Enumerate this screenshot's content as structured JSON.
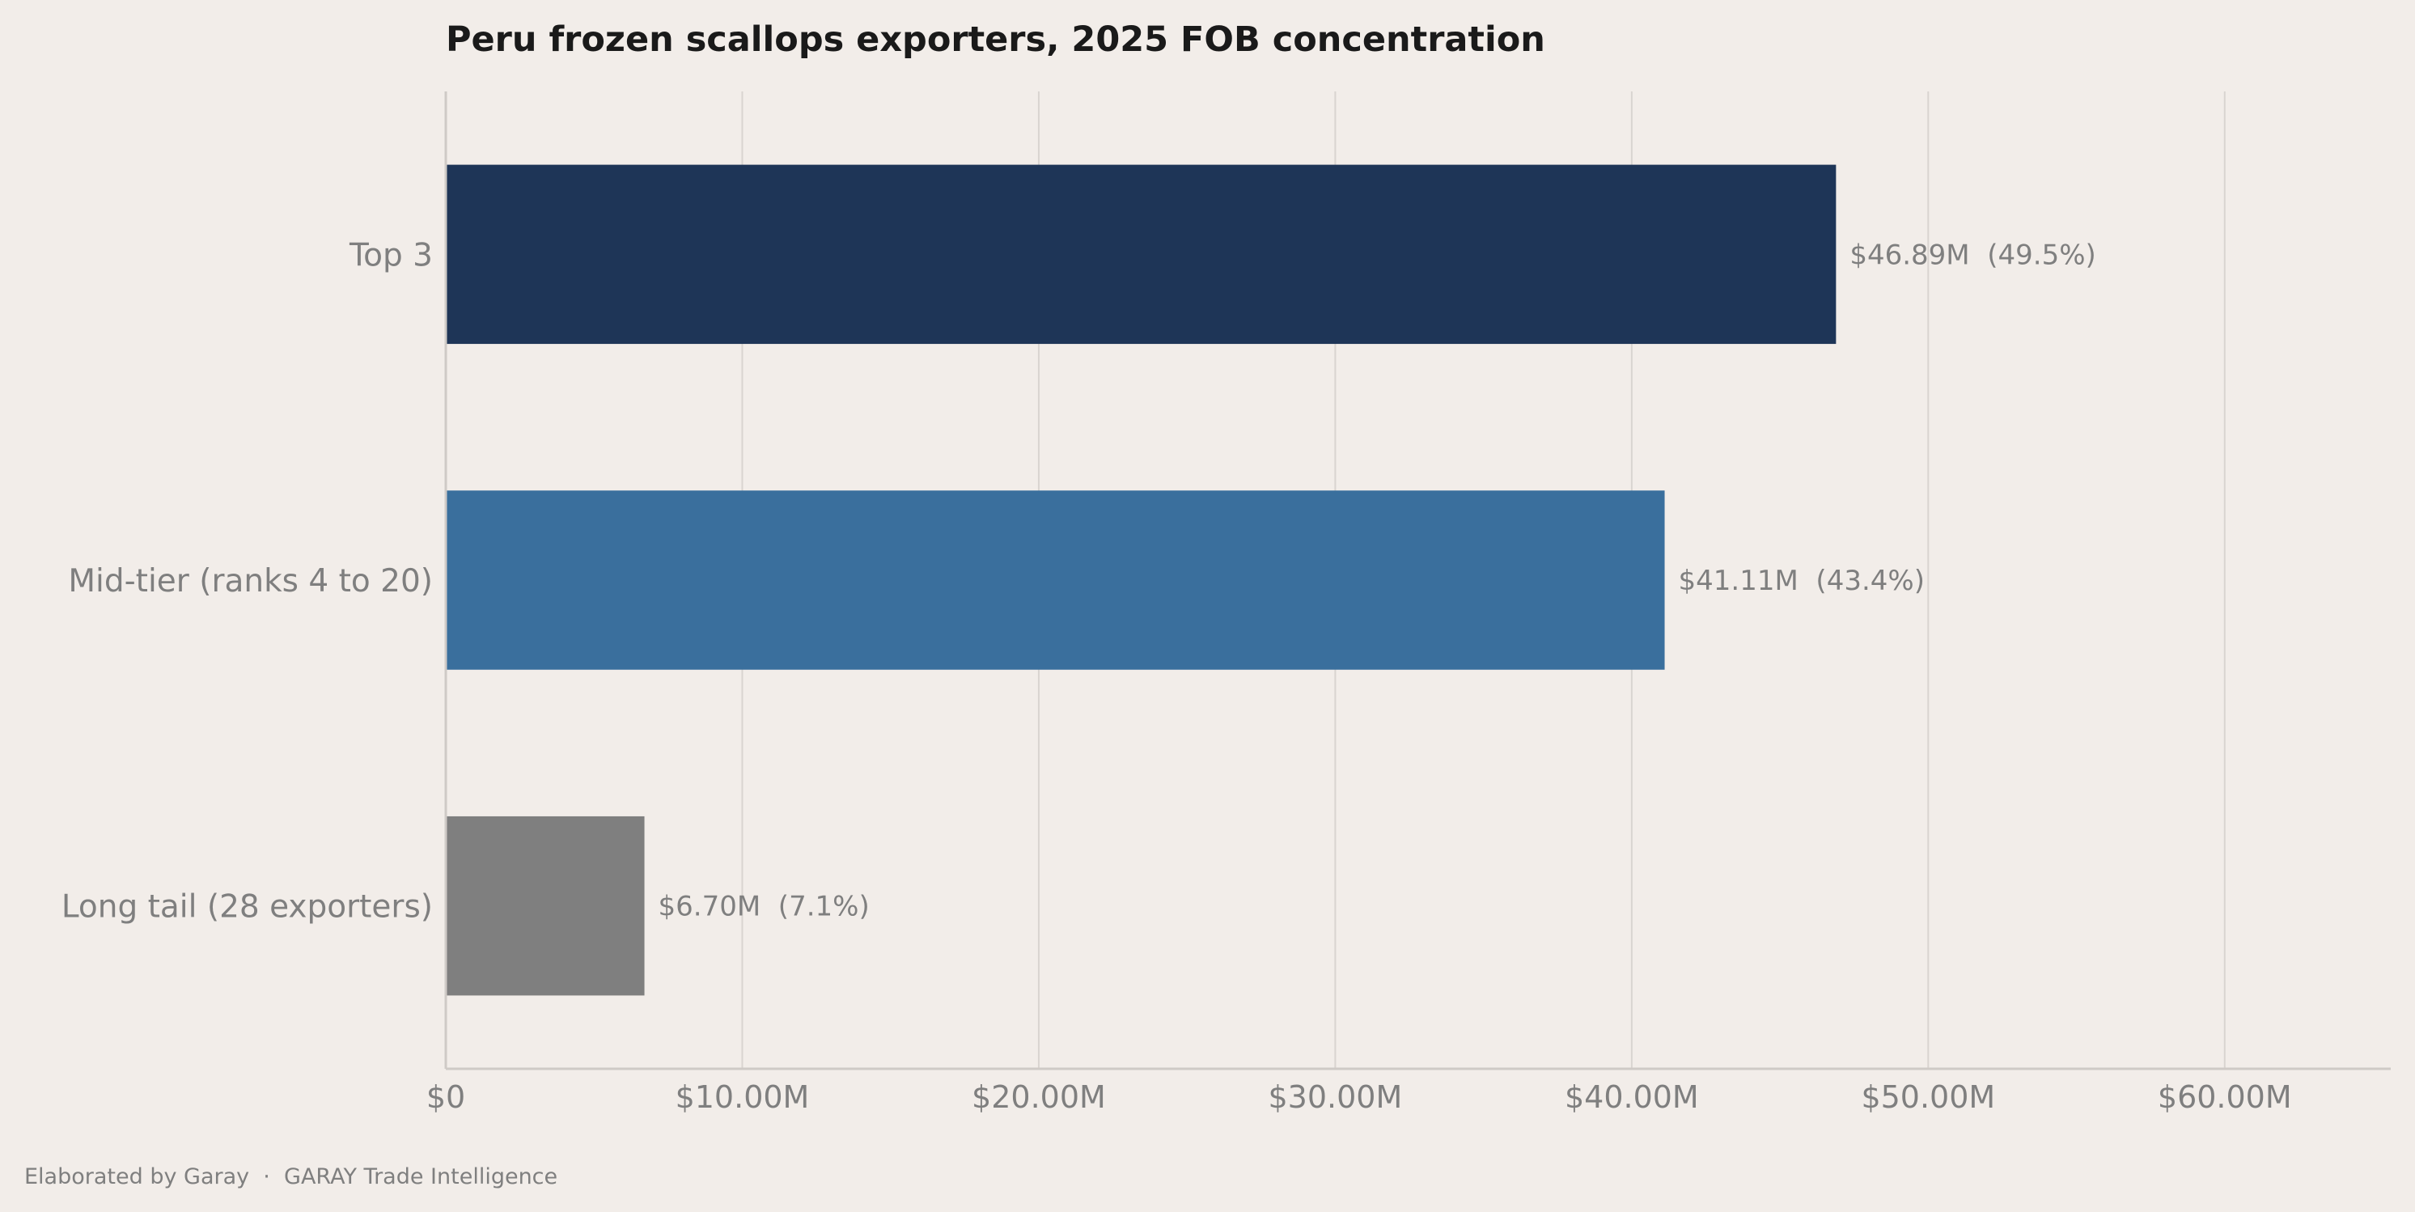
{
  "chart_data": {
    "type": "bar",
    "orientation": "horizontal",
    "title": "Peru frozen scallops exporters, 2025 FOB concentration",
    "xlabel": "",
    "ylabel": "",
    "xlim": [
      0,
      65.6
    ],
    "grid": "vertical",
    "categories": [
      "Top 3",
      "Mid-tier (ranks 4 to 20)",
      "Long tail (28 exporters)"
    ],
    "values": [
      46.89,
      41.11,
      6.7
    ],
    "value_units": "$M",
    "bar_labels": [
      "$46.89M  (49.5%)",
      "$41.11M  (43.4%)",
      "$6.70M  (7.1%)"
    ],
    "bar_colors": [
      "#1e3557",
      "#3a6f9d",
      "#7f7f7f"
    ],
    "x_ticks": [
      {
        "value": 0,
        "label": "$0"
      },
      {
        "value": 10,
        "label": "$10.00M"
      },
      {
        "value": 20,
        "label": "$20.00M"
      },
      {
        "value": 30,
        "label": "$30.00M"
      },
      {
        "value": 40,
        "label": "$40.00M"
      },
      {
        "value": 50,
        "label": "$50.00M"
      },
      {
        "value": 60,
        "label": "$60.00M"
      }
    ]
  },
  "footer": {
    "text": "Elaborated by Garay  ·  GARAY Trade Intelligence"
  },
  "colors": {
    "background": "#f2ede9",
    "grid": "#d9d4d0",
    "text_muted": "#7f7f7f",
    "title": "#1a1a1a"
  }
}
